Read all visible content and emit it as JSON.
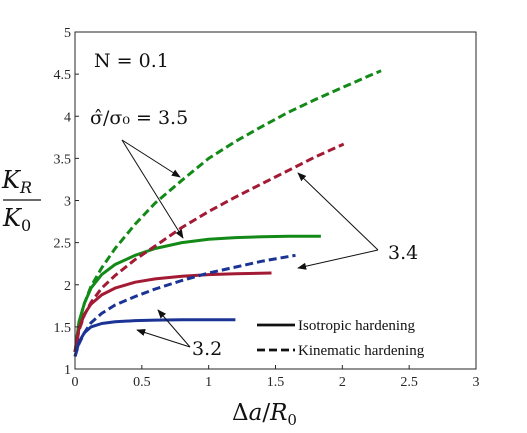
{
  "chart_data": {
    "type": "line",
    "xlim": [
      0,
      3
    ],
    "ylim": [
      1,
      5
    ],
    "xticks": [
      0,
      0.5,
      1,
      1.5,
      2,
      2.5,
      3
    ],
    "yticks": [
      1,
      1.5,
      2,
      2.5,
      3,
      3.5,
      4,
      4.5,
      5
    ],
    "xtick_labels": [
      "0",
      "0.5",
      "1",
      "1.5",
      "2",
      "2.5",
      "3"
    ],
    "ytick_labels": [
      "1",
      "1.5",
      "2",
      "2.5",
      "3",
      "3.5",
      "4",
      "4.5",
      "5"
    ],
    "xlabel": "Δa/R₀",
    "ylabel_num": "K_R",
    "ylabel_den": "K_0",
    "grid": false,
    "legend_position": "lower-right",
    "legend": [
      {
        "label": "Isotropic hardening",
        "style": "solid"
      },
      {
        "label": "Kinematic hardening",
        "style": "dashed"
      }
    ],
    "annotations": {
      "n_label": "N = 0.1",
      "sigma_label": "σ̂/σ₀ = 3.5",
      "label_34": "3.4",
      "label_32": "3.2"
    },
    "series": [
      {
        "group": "3.5",
        "hardening": "isotropic",
        "color": "#138a18",
        "x": [
          0,
          0.03,
          0.07,
          0.12,
          0.2,
          0.3,
          0.45,
          0.6,
          0.8,
          1.0,
          1.2,
          1.4,
          1.6,
          1.84
        ],
        "y": [
          1.2,
          1.56,
          1.78,
          1.96,
          2.12,
          2.24,
          2.35,
          2.43,
          2.5,
          2.54,
          2.56,
          2.57,
          2.575,
          2.575
        ]
      },
      {
        "group": "3.5",
        "hardening": "kinematic",
        "color": "#138a18",
        "x": [
          0,
          0.03,
          0.07,
          0.12,
          0.2,
          0.3,
          0.45,
          0.6,
          0.8,
          1.0,
          1.2,
          1.4,
          1.6,
          1.8,
          2.0,
          2.2,
          2.29
        ],
        "y": [
          1.2,
          1.55,
          1.78,
          1.98,
          2.2,
          2.43,
          2.72,
          2.97,
          3.24,
          3.5,
          3.7,
          3.88,
          4.05,
          4.2,
          4.34,
          4.48,
          4.54
        ]
      },
      {
        "group": "3.4",
        "hardening": "isotropic",
        "color": "#a31a35",
        "x": [
          0,
          0.03,
          0.07,
          0.12,
          0.2,
          0.3,
          0.45,
          0.6,
          0.8,
          1.0,
          1.2,
          1.47
        ],
        "y": [
          1.2,
          1.48,
          1.65,
          1.77,
          1.88,
          1.96,
          2.03,
          2.07,
          2.1,
          2.12,
          2.13,
          2.14
        ]
      },
      {
        "group": "3.4",
        "hardening": "kinematic",
        "color": "#a31a35",
        "x": [
          0,
          0.03,
          0.07,
          0.12,
          0.2,
          0.3,
          0.45,
          0.6,
          0.8,
          1.0,
          1.2,
          1.4,
          1.6,
          1.8,
          2.01
        ],
        "y": [
          1.2,
          1.46,
          1.64,
          1.79,
          1.96,
          2.11,
          2.3,
          2.46,
          2.68,
          2.87,
          3.04,
          3.2,
          3.36,
          3.52,
          3.67
        ]
      },
      {
        "group": "3.2",
        "hardening": "isotropic",
        "color": "#1a3394",
        "x": [
          0,
          0.03,
          0.07,
          0.12,
          0.2,
          0.3,
          0.45,
          0.6,
          0.8,
          1.0,
          1.2
        ],
        "y": [
          1.15,
          1.32,
          1.43,
          1.5,
          1.54,
          1.56,
          1.575,
          1.58,
          1.585,
          1.585,
          1.585
        ]
      },
      {
        "group": "3.2",
        "hardening": "kinematic",
        "color": "#1a3394",
        "x": [
          0,
          0.03,
          0.07,
          0.12,
          0.2,
          0.3,
          0.45,
          0.6,
          0.8,
          1.0,
          1.2,
          1.4,
          1.65
        ],
        "y": [
          1.15,
          1.3,
          1.43,
          1.55,
          1.66,
          1.76,
          1.86,
          1.95,
          2.05,
          2.14,
          2.21,
          2.28,
          2.35
        ]
      }
    ]
  }
}
